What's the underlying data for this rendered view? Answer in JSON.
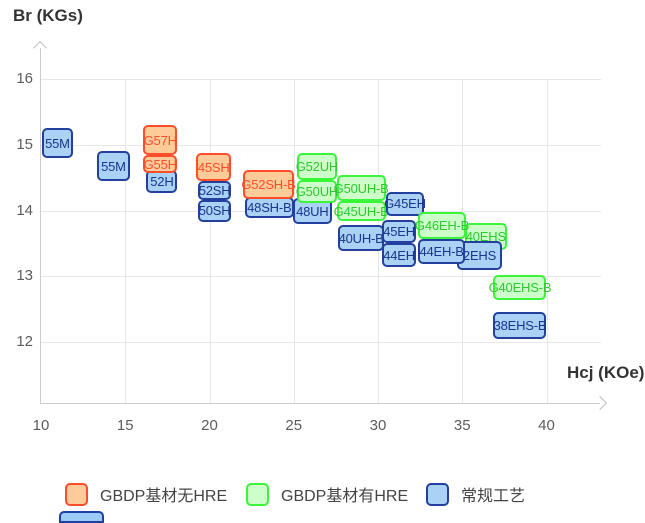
{
  "chart_data": {
    "type": "scatter",
    "marker": "range-box",
    "title": "",
    "xlabel": "Hcj (KOe)",
    "ylabel": "Br (KGs)",
    "xlim": [
      10,
      43.3
    ],
    "ylim": [
      11.1,
      16.5
    ],
    "xticks": [
      10,
      15,
      20,
      25,
      30,
      35,
      40
    ],
    "yticks": [
      16,
      15,
      14,
      13,
      12
    ],
    "grid": true,
    "legend_position": "bottom",
    "series_styles": {
      "gbdp_no_hre": {
        "fill": "#FFCC99",
        "border": "#FF4E2B",
        "text": "#FF4E2B"
      },
      "gbdp_hre": {
        "fill": "#CCFFC9",
        "border": "#3BF53B",
        "text": "#2FC92F"
      },
      "conventional": {
        "fill": "#A9D2F4",
        "border": "#24409E",
        "text": "#1A3590"
      }
    },
    "boxes": [
      {
        "label": "55M",
        "series": "conventional",
        "hcj": [
          10.05,
          11.9
        ],
        "br": [
          14.8,
          15.25
        ]
      },
      {
        "label": "55M",
        "series": "conventional",
        "hcj": [
          13.3,
          15.3
        ],
        "br": [
          14.45,
          14.9
        ]
      },
      {
        "label": "52H",
        "series": "conventional",
        "hcj": [
          16.25,
          18.1
        ],
        "br": [
          14.27,
          14.62
        ]
      },
      {
        "label": "52SH",
        "series": "conventional",
        "hcj": [
          19.3,
          21.3
        ],
        "br": [
          14.16,
          14.45
        ]
      },
      {
        "label": "50SH",
        "series": "conventional",
        "hcj": [
          19.3,
          21.3
        ],
        "br": [
          13.83,
          14.16
        ]
      },
      {
        "label": "48SH-B",
        "series": "conventional",
        "hcj": [
          22.1,
          25.0
        ],
        "br": [
          13.88,
          14.21
        ]
      },
      {
        "label": "48UH",
        "series": "conventional",
        "hcj": [
          24.95,
          27.25
        ],
        "br": [
          13.79,
          14.19
        ]
      },
      {
        "label": "40UH-B",
        "series": "conventional",
        "hcj": [
          27.65,
          30.35
        ],
        "br": [
          13.38,
          13.78
        ]
      },
      {
        "label": "G57H",
        "series": "gbdp_no_hre",
        "hcj": [
          16.05,
          18.1
        ],
        "br": [
          14.84,
          15.3
        ]
      },
      {
        "label": "G55H",
        "series": "gbdp_no_hre",
        "hcj": [
          16.05,
          18.1
        ],
        "br": [
          14.57,
          14.84
        ]
      },
      {
        "label": "45SH",
        "series": "gbdp_no_hre",
        "hcj": [
          19.2,
          21.3
        ],
        "br": [
          14.45,
          14.87
        ]
      },
      {
        "label": "G52SH-B",
        "series": "gbdp_no_hre",
        "hcj": [
          22.0,
          25.0
        ],
        "br": [
          14.18,
          14.62
        ]
      },
      {
        "label": "G52UH",
        "series": "gbdp_hre",
        "hcj": [
          25.2,
          27.55
        ],
        "br": [
          14.46,
          14.87
        ]
      },
      {
        "label": "G50UH",
        "series": "gbdp_hre",
        "hcj": [
          25.2,
          27.55
        ],
        "br": [
          14.11,
          14.46
        ]
      },
      {
        "label": "G50UH-B",
        "series": "gbdp_hre",
        "hcj": [
          27.55,
          30.45
        ],
        "br": [
          14.14,
          14.54
        ]
      },
      {
        "label": "G45UH-B",
        "series": "gbdp_hre",
        "hcj": [
          27.55,
          30.45
        ],
        "br": [
          13.84,
          14.14
        ]
      },
      {
        "label": "G45EH",
        "series": "conventional",
        "hcj": [
          30.45,
          32.75
        ],
        "br": [
          13.92,
          14.28
        ]
      },
      {
        "label": "45EH",
        "series": "conventional",
        "hcj": [
          30.25,
          32.25
        ],
        "br": [
          13.5,
          13.86
        ]
      },
      {
        "label": "44EH",
        "series": "conventional",
        "hcj": [
          30.25,
          32.25
        ],
        "br": [
          13.14,
          13.5
        ]
      },
      {
        "label": "40EHS",
        "series": "gbdp_hre",
        "hcj": [
          35.15,
          37.65
        ],
        "br": [
          13.4,
          13.81
        ]
      },
      {
        "label": "2EHS",
        "series": "conventional",
        "hcj": [
          34.7,
          37.35
        ],
        "br": [
          13.1,
          13.53
        ]
      },
      {
        "label": "44EH-B",
        "series": "conventional",
        "hcj": [
          32.4,
          35.15
        ],
        "br": [
          13.19,
          13.57
        ]
      },
      {
        "label": "G46EH-B",
        "series": "gbdp_hre",
        "hcj": [
          32.35,
          35.25
        ],
        "br": [
          13.57,
          13.98
        ]
      },
      {
        "label": "G40EHS-B",
        "series": "gbdp_hre",
        "hcj": [
          36.85,
          40.0
        ],
        "br": [
          12.64,
          13.02
        ]
      },
      {
        "label": "38EHS-B",
        "series": "conventional",
        "hcj": [
          36.85,
          40.0
        ],
        "br": [
          12.05,
          12.46
        ]
      }
    ]
  },
  "legend": {
    "items": [
      {
        "label": "GBDP基材无HRE",
        "series": "gbdp_no_hre"
      },
      {
        "label": "GBDP基材有HRE",
        "series": "gbdp_hre"
      },
      {
        "label": "常规工艺",
        "series": "conventional"
      }
    ]
  }
}
